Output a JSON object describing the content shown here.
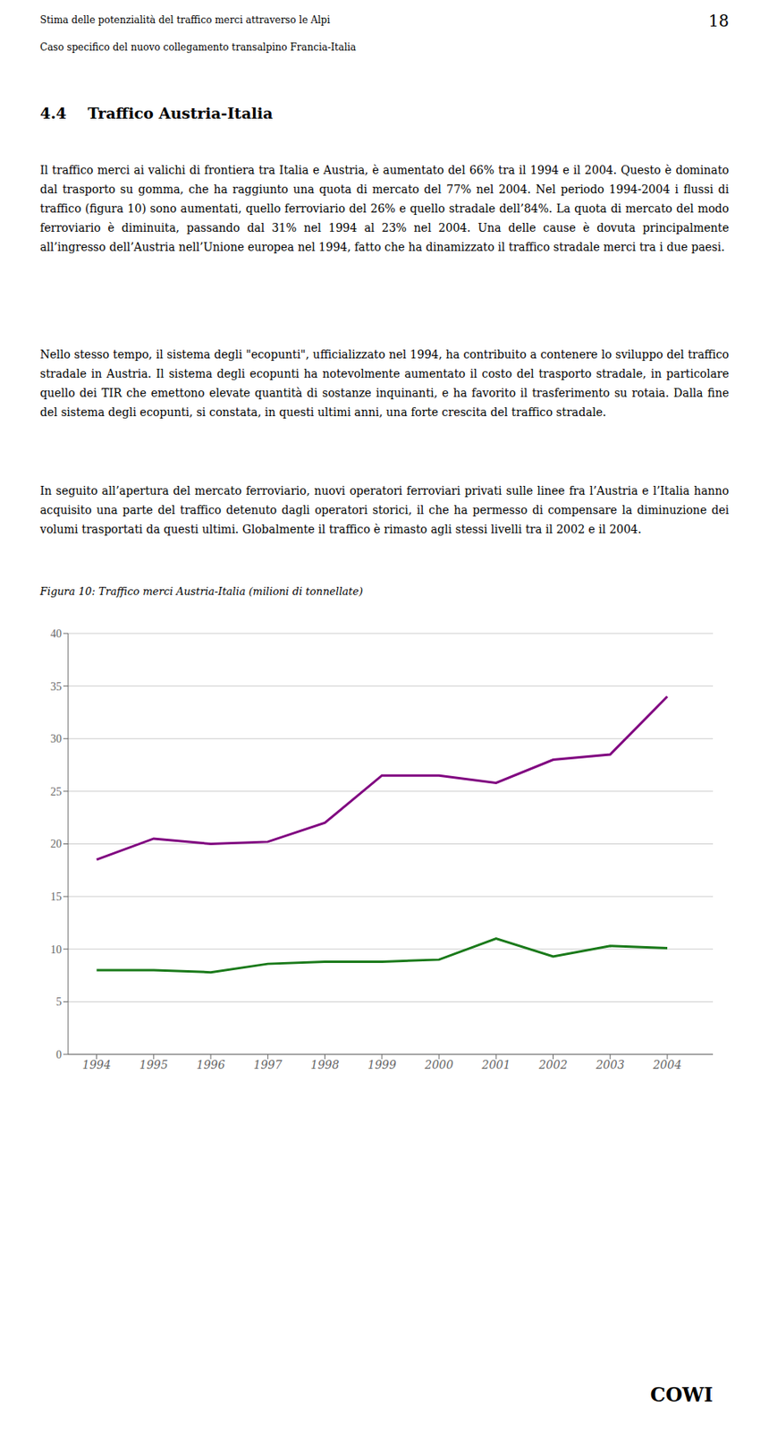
{
  "chart_data": {
    "type": "line",
    "title": "Figura 10: Traffico merci Austria-Italia (milioni di tonnellate)",
    "annotations": [
      "Stima delle potenzialità del traffico merci attraverso le Alpi",
      "18",
      "Caso specifico del nuovo collegamento transalpino Francia-Italia",
      "4.4    Traffico Austria-Italia",
      "Il traffico merci ai valichi di frontiera tra Italia e Austria, è aumentato del 66% tra il 1994 e il 2004. Questo è dominato dal trasporto su gomma, che ha raggiunto una quota di mercato del 77% nel 2004. Nel periodo 1994-2004 i flussi di traffico (figura 10) sono aumentati, quello ferroviario del 26% e quello stradale dell’84%. La quota di mercato del modo ferroviario è diminuita, passando dal 31% nel 1994 al 23% nel 2004. Una delle cause è dovuta principalmente all’ingresso dell’Austria nell’Unione europea nel 1994, fatto che ha dinamizzato il traffico stradale merci tra i due paesi.",
      "Nello stesso tempo, il sistema degli \"ecopunti\", ufficializzato nel 1994, ha contribuito a contenere lo sviluppo del traffico stradale in Austria. Il sistema degli ecopunti ha notevolmente aumentato il costo del trasporto stradale, in particolare quello dei TIR che emettono elevate quantità di sostanze inquinanti, e ha favorito il trasferimento su rotaia. Dalla fine del sistema degli ecopunti, si constata, in questi ultimi anni, una forte crescita del traffico stradale.",
      "In seguito all’apertura del mercato ferroviario, nuovi operatori ferroviari privati sulle linee fra l’Austria e l’Italia hanno acquisito una parte del traffico detenuto dagli operatori storici, il che ha permesso di compensare la diminuzione dei volumi trasportati da questi ultimi. Globalmente il traffico è rimasto agli stessi livelli tra il 2002 e il 2004.",
      "COWI"
    ],
    "x": [
      1994,
      1995,
      1996,
      1997,
      1998,
      1999,
      2000,
      2001,
      2002,
      2003,
      2004
    ],
    "series": [
      {
        "color": "#800080",
        "values": [
          18.5,
          20.5,
          20.0,
          20.2,
          22.0,
          26.5,
          26.5,
          25.8,
          28.0,
          28.5,
          34.0
        ]
      },
      {
        "color": "#1a7a1a",
        "values": [
          8.0,
          8.0,
          7.8,
          8.6,
          8.8,
          8.8,
          9.0,
          11.0,
          9.3,
          10.3,
          10.1
        ]
      }
    ],
    "xlim": [
      1993.5,
      2004.8
    ],
    "xticks": [
      1994,
      1995,
      1996,
      1997,
      1998,
      1999,
      2000,
      2001,
      2002,
      2003,
      2004
    ],
    "ylim": [
      0,
      40
    ],
    "yticks": [
      0,
      5,
      10,
      15,
      20,
      25,
      30,
      35,
      40
    ],
    "grid": true
  }
}
